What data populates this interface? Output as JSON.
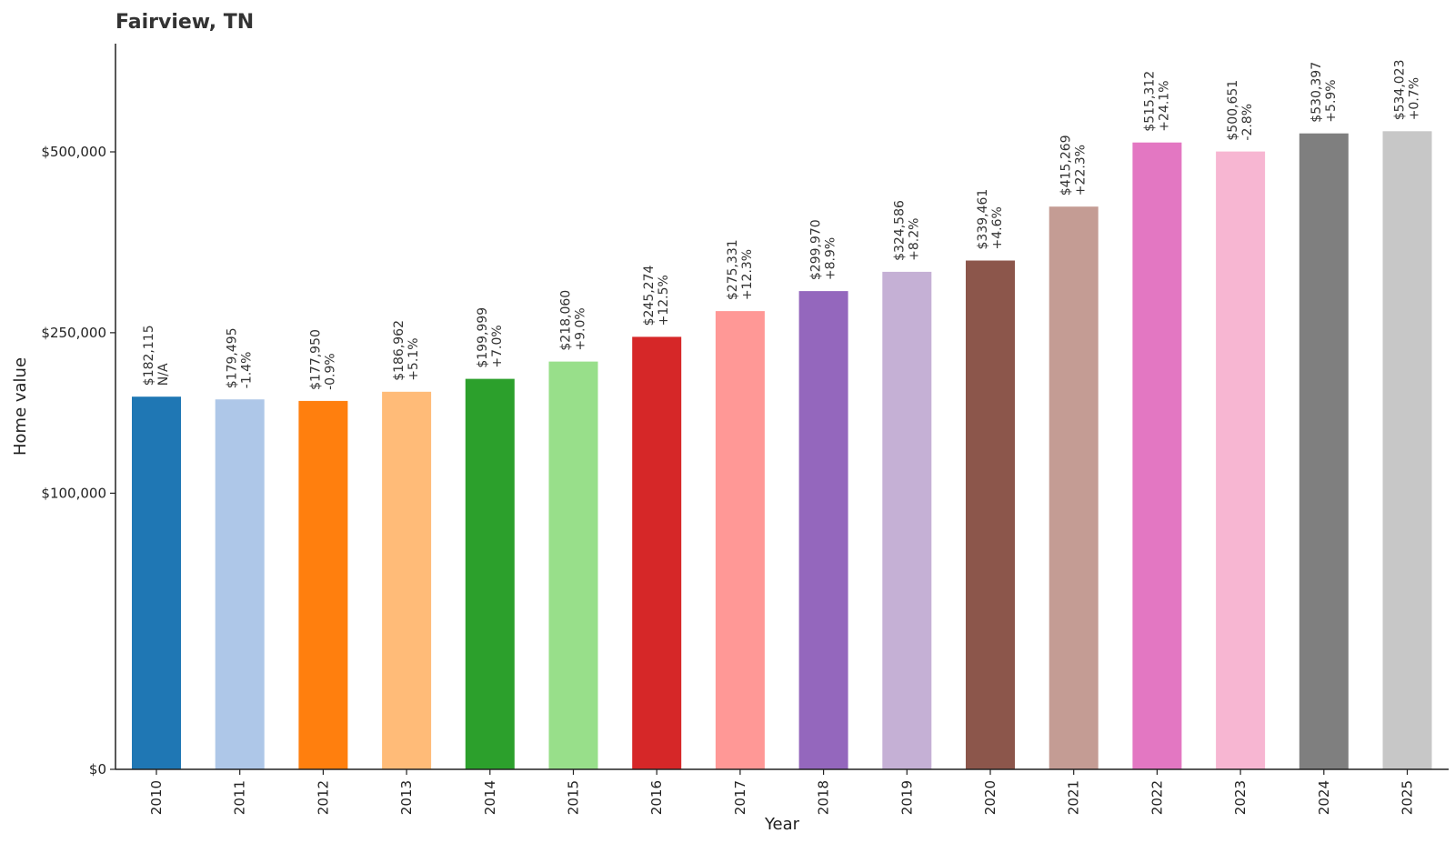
{
  "chart_data": {
    "type": "bar",
    "title": "Fairview, TN",
    "xlabel": "Year",
    "ylabel": "Home value",
    "y_scale": "sqrt",
    "ylim": [
      0,
      580000
    ],
    "yticks": [
      {
        "value": 0,
        "label": "$0"
      },
      {
        "value": 100000,
        "label": "$100,000"
      },
      {
        "value": 250000,
        "label": "$250,000"
      },
      {
        "value": 500000,
        "label": "$500,000"
      }
    ],
    "grid": false,
    "categories": [
      "2010",
      "2011",
      "2012",
      "2013",
      "2014",
      "2015",
      "2016",
      "2017",
      "2018",
      "2019",
      "2020",
      "2021",
      "2022",
      "2023",
      "2024",
      "2025"
    ],
    "values": [
      182115,
      179495,
      177950,
      186962,
      199999,
      218060,
      245274,
      275331,
      299970,
      324586,
      339461,
      415269,
      515312,
      500651,
      530397,
      534023
    ],
    "value_labels": [
      "$182,115",
      "$179,495",
      "$177,950",
      "$186,962",
      "$199,999",
      "$218,060",
      "$245,274",
      "$275,331",
      "$299,970",
      "$324,586",
      "$339,461",
      "$415,269",
      "$515,312",
      "$500,651",
      "$530,397",
      "$534,023"
    ],
    "change_labels": [
      "N/A",
      "-1.4%",
      "-0.9%",
      "+5.1%",
      "+7.0%",
      "+9.0%",
      "+12.5%",
      "+12.3%",
      "+8.9%",
      "+8.2%",
      "+4.6%",
      "+22.3%",
      "+24.1%",
      "-2.8%",
      "+5.9%",
      "+0.7%"
    ],
    "colors": [
      "#1f77b4",
      "#aec7e8",
      "#ff7f0e",
      "#ffbb78",
      "#2ca02c",
      "#98df8a",
      "#d62728",
      "#ff9896",
      "#9467bd",
      "#c5b0d5",
      "#8c564b",
      "#c49c94",
      "#e377c2",
      "#f7b6d2",
      "#7f7f7f",
      "#c7c7c7"
    ]
  }
}
